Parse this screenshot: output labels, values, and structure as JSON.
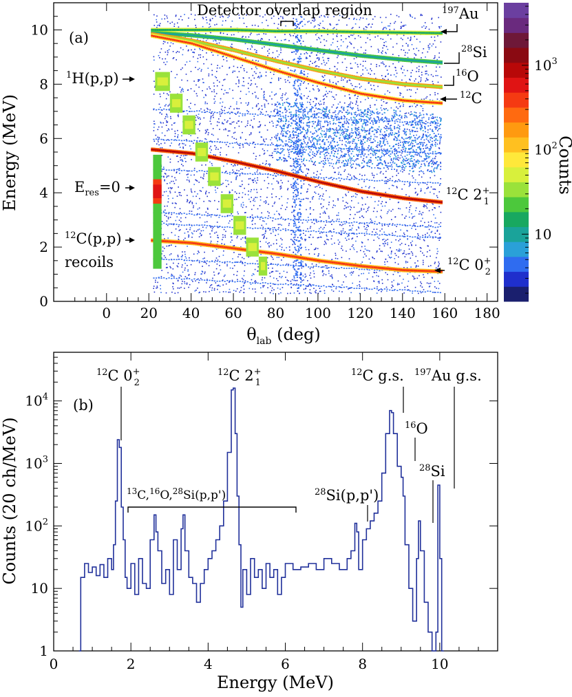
{
  "chart_data": [
    {
      "type": "heatmap",
      "panel_label": "(a)",
      "xlabel_main": "θ",
      "xlabel_sub": "lab",
      "xlabel_unit": " (deg)",
      "ylabel": "Energy (MeV)",
      "xlim": [
        -25,
        185
      ],
      "ylim": [
        0,
        11
      ],
      "x_ticks": [
        0,
        20,
        40,
        60,
        80,
        100,
        120,
        140,
        160,
        180
      ],
      "y_ticks": [
        0,
        2,
        4,
        6,
        8,
        10
      ],
      "colorbar": {
        "title": "Counts",
        "scale": "log",
        "tick_labels": [
          {
            "value": 10,
            "base": "10",
            "exp": ""
          },
          {
            "value": 100,
            "base": "10",
            "exp": "2"
          },
          {
            "value": 1000,
            "base": "10",
            "exp": "3"
          }
        ],
        "colors": [
          "#1a1f6e",
          "#1f2fcc",
          "#2f6cf0",
          "#2aa0d8",
          "#1aa39a",
          "#18a860",
          "#4cc83c",
          "#9ae23a",
          "#d8f03c",
          "#ffe83a",
          "#ffc020",
          "#ff9a10",
          "#ff6a10",
          "#f53a12",
          "#e01414",
          "#b80808",
          "#8a0a12",
          "#6e1838",
          "#6a2a7e",
          "#6b3fa0"
        ]
      },
      "annotations": {
        "overlap": "Detector overlap region",
        "au": {
          "mass": "197",
          "name": "Au"
        },
        "si": {
          "mass": "28",
          "name": "Si"
        },
        "o": {
          "mass": "16",
          "name": "O"
        },
        "c": {
          "mass": "12",
          "name": "C"
        },
        "pp": {
          "mass": "1",
          "name": "H(p,p)"
        },
        "eres": {
          "main": "E",
          "sub": "res",
          "rest": "=0"
        },
        "c21": {
          "mass": "12",
          "name": "C 2",
          "sup": "+",
          "sub": "1"
        },
        "c02": {
          "mass": "12",
          "name": "C 0",
          "sup": "+",
          "sub": "2"
        },
        "recoil1": {
          "mass": "12",
          "name": "C(p,p)"
        },
        "recoil2": "recoils"
      },
      "series": [
        {
          "name": "197Au",
          "x": [
            20,
            40,
            60,
            80,
            100,
            120,
            140,
            158
          ],
          "y": [
            10.0,
            10.0,
            10.0,
            9.95,
            9.95,
            9.92,
            9.9,
            9.88
          ]
        },
        {
          "name": "28Si",
          "x": [
            20,
            40,
            60,
            80,
            100,
            120,
            140,
            158
          ],
          "y": [
            9.9,
            9.8,
            9.65,
            9.45,
            9.25,
            9.05,
            8.9,
            8.8
          ]
        },
        {
          "name": "16O",
          "x": [
            20,
            40,
            60,
            80,
            100,
            120,
            140,
            158
          ],
          "y": [
            9.85,
            9.6,
            9.25,
            8.85,
            8.5,
            8.2,
            8.0,
            7.9
          ]
        },
        {
          "name": "12C",
          "x": [
            20,
            40,
            60,
            80,
            100,
            120,
            140,
            158
          ],
          "y": [
            9.8,
            9.5,
            9.0,
            8.5,
            8.05,
            7.65,
            7.4,
            7.3
          ]
        },
        {
          "name": "12C 2+1",
          "x": [
            20,
            40,
            60,
            80,
            100,
            120,
            140,
            158
          ],
          "y": [
            5.6,
            5.45,
            5.15,
            4.8,
            4.4,
            4.05,
            3.8,
            3.65
          ]
        },
        {
          "name": "12C 0+2",
          "x": [
            20,
            40,
            60,
            80,
            100,
            120,
            140,
            158
          ],
          "y": [
            2.25,
            2.15,
            1.95,
            1.75,
            1.5,
            1.3,
            1.15,
            1.1
          ]
        },
        {
          "name": "1H(p,p)",
          "x": [
            23,
            30,
            36,
            42,
            48,
            54,
            60,
            66,
            72,
            76
          ],
          "y": [
            8.1,
            7.3,
            6.5,
            5.5,
            4.6,
            3.6,
            2.8,
            2.0,
            1.3,
            0.8
          ]
        }
      ]
    },
    {
      "type": "line",
      "panel_label": "(b)",
      "xlabel": "Energy (MeV)",
      "ylabel": "Counts (20 ch/MeV)",
      "yscale": "log",
      "xlim": [
        0,
        11.5
      ],
      "ylim": [
        1,
        60000
      ],
      "x_ticks": [
        0,
        2,
        4,
        6,
        8,
        10
      ],
      "y_tick_labels": [
        {
          "value": 1,
          "base": "1",
          "exp": ""
        },
        {
          "value": 10,
          "base": "10",
          "exp": ""
        },
        {
          "value": 100,
          "base": "10",
          "exp": "2"
        },
        {
          "value": 1000,
          "base": "10",
          "exp": "3"
        },
        {
          "value": 10000,
          "base": "10",
          "exp": "4"
        }
      ],
      "line_color": "#1f2f9a",
      "annotations": {
        "c02": {
          "mass": "12",
          "name": "C 0",
          "sup": "+",
          "sub": "2"
        },
        "c21": {
          "mass": "12",
          "name": "C 2",
          "sup": "+",
          "sub": "1"
        },
        "cgs": {
          "mass": "12",
          "name": "C g.s."
        },
        "augs": {
          "mass": "197",
          "name": "Au g.s."
        },
        "o": {
          "mass": "16",
          "name": "O"
        },
        "si": {
          "mass": "28",
          "name": "Si"
        },
        "sipp": {
          "mass": "28",
          "name": "Si(p,p')"
        },
        "group": {
          "m1": "13",
          "t1": "C,",
          "m2": "16",
          "t2": "O,",
          "m3": "28",
          "t3": "Si(p,p')"
        }
      },
      "x": [
        0.65,
        0.7,
        0.8,
        0.9,
        1.0,
        1.1,
        1.2,
        1.3,
        1.4,
        1.5,
        1.55,
        1.6,
        1.65,
        1.7,
        1.75,
        1.8,
        1.85,
        1.9,
        2.0,
        2.1,
        2.2,
        2.3,
        2.4,
        2.5,
        2.6,
        2.65,
        2.7,
        2.8,
        2.9,
        3.0,
        3.1,
        3.2,
        3.3,
        3.35,
        3.4,
        3.5,
        3.6,
        3.7,
        3.8,
        3.9,
        4.0,
        4.1,
        4.2,
        4.3,
        4.4,
        4.5,
        4.6,
        4.65,
        4.7,
        4.75,
        4.8,
        4.85,
        4.9,
        5.0,
        5.1,
        5.2,
        5.3,
        5.4,
        5.5,
        5.6,
        5.7,
        5.8,
        5.9,
        6.0,
        6.2,
        6.4,
        6.6,
        6.8,
        7.0,
        7.2,
        7.4,
        7.6,
        7.7,
        7.8,
        7.85,
        7.9,
        8.0,
        8.1,
        8.2,
        8.3,
        8.4,
        8.5,
        8.6,
        8.7,
        8.75,
        8.8,
        8.9,
        9.0,
        9.05,
        9.1,
        9.2,
        9.3,
        9.4,
        9.45,
        9.5,
        9.6,
        9.7,
        9.8,
        9.9,
        9.95,
        10.0,
        10.05
      ],
      "y": [
        1,
        15,
        25,
        18,
        22,
        16,
        24,
        15,
        30,
        20,
        50,
        250,
        2400,
        1800,
        200,
        60,
        15,
        10,
        25,
        8,
        30,
        12,
        10,
        60,
        150,
        80,
        40,
        12,
        20,
        8,
        60,
        20,
        90,
        150,
        40,
        15,
        12,
        6,
        12,
        20,
        30,
        40,
        60,
        100,
        250,
        1500,
        15000,
        16000,
        3000,
        300,
        50,
        5,
        20,
        8,
        30,
        15,
        20,
        10,
        25,
        15,
        20,
        8,
        15,
        25,
        20,
        22,
        25,
        20,
        30,
        25,
        20,
        30,
        40,
        110,
        80,
        20,
        60,
        90,
        120,
        160,
        250,
        700,
        3000,
        7000,
        6500,
        3000,
        900,
        600,
        300,
        50,
        10,
        3,
        30,
        120,
        40,
        6,
        2,
        1,
        2,
        450,
        30,
        1
      ]
    }
  ]
}
